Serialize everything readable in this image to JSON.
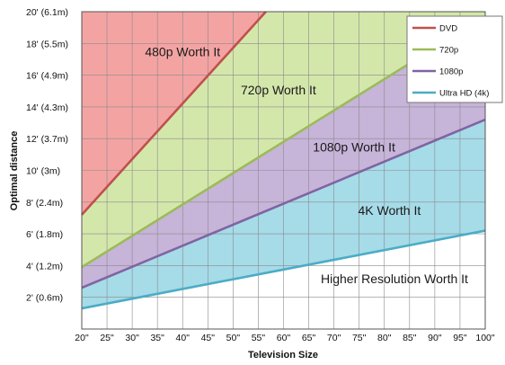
{
  "chart_data": {
    "type": "area",
    "title": "",
    "xlabel": "Television Size",
    "ylabel": "Optimal distance",
    "xlim": [
      20,
      100
    ],
    "ylim": [
      0,
      20
    ],
    "grid": true,
    "legend_placement": "top-right",
    "x_ticks": [
      {
        "value": 20,
        "label": "20\""
      },
      {
        "value": 25,
        "label": "25\""
      },
      {
        "value": 30,
        "label": "30\""
      },
      {
        "value": 35,
        "label": "35\""
      },
      {
        "value": 40,
        "label": "40\""
      },
      {
        "value": 45,
        "label": "45\""
      },
      {
        "value": 50,
        "label": "50\""
      },
      {
        "value": 55,
        "label": "55\""
      },
      {
        "value": 60,
        "label": "60\""
      },
      {
        "value": 65,
        "label": "65\""
      },
      {
        "value": 70,
        "label": "70\""
      },
      {
        "value": 75,
        "label": "75\""
      },
      {
        "value": 80,
        "label": "80\""
      },
      {
        "value": 85,
        "label": "85\""
      },
      {
        "value": 90,
        "label": "90\""
      },
      {
        "value": 95,
        "label": "95\""
      },
      {
        "value": 100,
        "label": "100\""
      }
    ],
    "y_ticks": [
      {
        "value": 2,
        "label": "2' (0.6m)"
      },
      {
        "value": 4,
        "label": "4' (1.2m)"
      },
      {
        "value": 6,
        "label": "6' (1.8m)"
      },
      {
        "value": 8,
        "label": "8' (2.4m)"
      },
      {
        "value": 10,
        "label": "10' (3m)"
      },
      {
        "value": 12,
        "label": "12' (3.7m)"
      },
      {
        "value": 14,
        "label": "14' (4.3m)"
      },
      {
        "value": 16,
        "label": "16' (4.9m)"
      },
      {
        "value": 18,
        "label": "18' (5.5m)"
      },
      {
        "value": 20,
        "label": "20' (6.1m)"
      }
    ],
    "series": [
      {
        "name": "DVD",
        "color": "#c0504d",
        "x": [
          20,
          56.5
        ],
        "y": [
          7.2,
          20
        ]
      },
      {
        "name": "720p",
        "color": "#9bbb59",
        "x": [
          20,
          100
        ],
        "y": [
          3.9,
          19.7
        ]
      },
      {
        "name": "1080p",
        "color": "#8064a2",
        "x": [
          20,
          100
        ],
        "y": [
          2.6,
          13.2
        ]
      },
      {
        "name": "Ultra HD (4k)",
        "color": "#4bacc6",
        "x": [
          20,
          100
        ],
        "y": [
          1.3,
          6.2
        ]
      }
    ],
    "regions": [
      {
        "label": "480p Worth It",
        "fill": "#f4a3a3",
        "x": 40,
        "y": 17.2
      },
      {
        "label": "720p Worth It",
        "fill": "#d4e7ab",
        "x": 59,
        "y": 14.8
      },
      {
        "label": "1080p Worth It",
        "fill": "#c7b4d9",
        "x": 74,
        "y": 11.2
      },
      {
        "label": "4K Worth It",
        "fill": "#a6dbe8",
        "x": 81,
        "y": 7.2
      },
      {
        "label": "Higher Resolution Worth It",
        "fill": "#ffffff",
        "x": 82,
        "y": 2.9
      }
    ]
  }
}
